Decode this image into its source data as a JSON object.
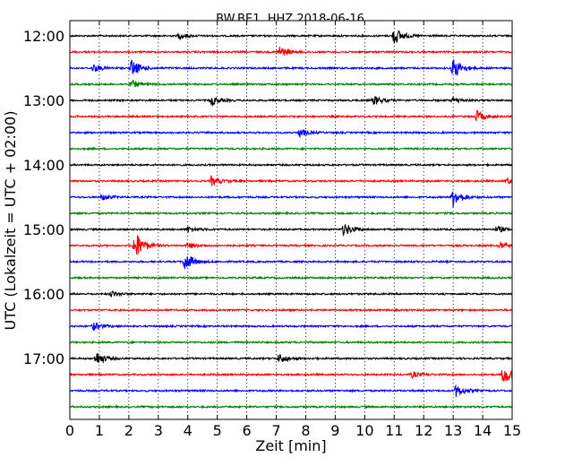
{
  "chart_data": {
    "type": "line",
    "title": "BW.BE1..HHZ 2018-06-16",
    "xlabel": "Zeit  [min]",
    "ylabel": "UTC (Lokalzeit = UTC + 02:00)",
    "xlim": [
      0,
      15
    ],
    "x_ticks": [
      0,
      1,
      2,
      3,
      4,
      5,
      6,
      7,
      8,
      9,
      10,
      11,
      12,
      13,
      14,
      15
    ],
    "y_tick_labels": [
      "12:00",
      "13:00",
      "14:00",
      "15:00",
      "16:00",
      "17:00"
    ],
    "grid": "vertical dotted",
    "series_colors": [
      "#000000",
      "#ff0000",
      "#0000ff",
      "#008000"
    ],
    "traces": [
      {
        "start": "12:00",
        "color": "#000000",
        "events": [
          {
            "t": 3.7,
            "amp": 0.3
          },
          {
            "t": 11.0,
            "amp": 0.9
          }
        ]
      },
      {
        "start": "12:15",
        "color": "#ff0000",
        "events": [
          {
            "t": 7.1,
            "amp": 0.6
          }
        ]
      },
      {
        "start": "12:30",
        "color": "#0000ff",
        "events": [
          {
            "t": 0.8,
            "amp": 0.4
          },
          {
            "t": 2.1,
            "amp": 0.9
          },
          {
            "t": 13.0,
            "amp": 1.1
          }
        ]
      },
      {
        "start": "12:45",
        "color": "#008000",
        "events": [
          {
            "t": 2.1,
            "amp": 0.4
          }
        ]
      },
      {
        "start": "13:00",
        "color": "#000000",
        "events": [
          {
            "t": 4.8,
            "amp": 0.5
          },
          {
            "t": 10.3,
            "amp": 0.5
          },
          {
            "t": 13.0,
            "amp": 0.3
          }
        ]
      },
      {
        "start": "13:15",
        "color": "#ff0000",
        "events": [
          {
            "t": 13.8,
            "amp": 0.6
          }
        ]
      },
      {
        "start": "13:30",
        "color": "#0000ff",
        "events": [
          {
            "t": 7.8,
            "amp": 0.4
          }
        ]
      },
      {
        "start": "13:45",
        "color": "#008000",
        "events": []
      },
      {
        "start": "14:00",
        "color": "#000000",
        "events": []
      },
      {
        "start": "14:15",
        "color": "#ff0000",
        "events": [
          {
            "t": 4.8,
            "amp": 0.5
          },
          {
            "t": 14.8,
            "amp": 0.3
          }
        ]
      },
      {
        "start": "14:30",
        "color": "#0000ff",
        "events": [
          {
            "t": 1.1,
            "amp": 0.3
          },
          {
            "t": 13.0,
            "amp": 1.0
          }
        ]
      },
      {
        "start": "14:45",
        "color": "#008000",
        "events": []
      },
      {
        "start": "15:00",
        "color": "#000000",
        "events": [
          {
            "t": 4.0,
            "amp": 0.3
          },
          {
            "t": 9.3,
            "amp": 0.7
          },
          {
            "t": 14.5,
            "amp": 0.3
          }
        ]
      },
      {
        "start": "15:15",
        "color": "#ff0000",
        "events": [
          {
            "t": 2.2,
            "amp": 1.6
          },
          {
            "t": 4.0,
            "amp": 0.3
          },
          {
            "t": 14.6,
            "amp": 0.3
          }
        ]
      },
      {
        "start": "15:30",
        "color": "#0000ff",
        "events": [
          {
            "t": 3.9,
            "amp": 1.0
          }
        ]
      },
      {
        "start": "15:45",
        "color": "#008000",
        "events": []
      },
      {
        "start": "16:00",
        "color": "#000000",
        "events": [
          {
            "t": 1.4,
            "amp": 0.3
          }
        ]
      },
      {
        "start": "16:15",
        "color": "#ff0000",
        "events": []
      },
      {
        "start": "16:30",
        "color": "#0000ff",
        "events": [
          {
            "t": 0.8,
            "amp": 0.4
          }
        ]
      },
      {
        "start": "16:45",
        "color": "#008000",
        "events": []
      },
      {
        "start": "17:00",
        "color": "#000000",
        "events": [
          {
            "t": 0.9,
            "amp": 0.7
          },
          {
            "t": 7.1,
            "amp": 0.5
          }
        ]
      },
      {
        "start": "17:15",
        "color": "#ff0000",
        "events": [
          {
            "t": 11.6,
            "amp": 0.3
          },
          {
            "t": 14.7,
            "amp": 1.1
          }
        ]
      },
      {
        "start": "17:30",
        "color": "#0000ff",
        "events": [
          {
            "t": 13.1,
            "amp": 0.6
          }
        ]
      },
      {
        "start": "17:45",
        "color": "#008000",
        "events": []
      }
    ]
  }
}
